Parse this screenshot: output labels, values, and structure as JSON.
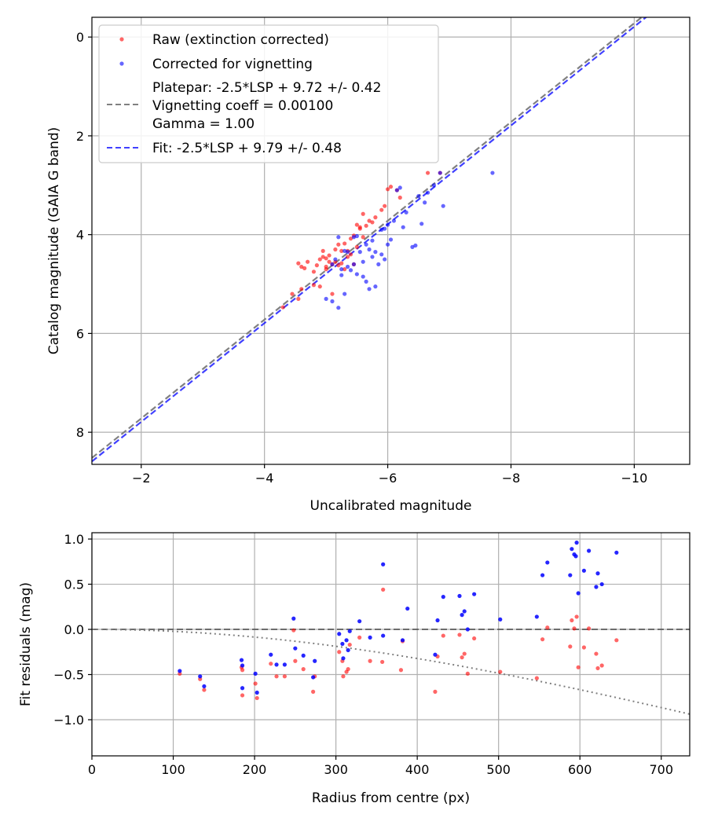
{
  "chart_data": [
    {
      "type": "scatter",
      "xlabel": "Uncalibrated magnitude",
      "ylabel": "Catalog magnitude (GAIA G band)",
      "xlim": [
        -1.2,
        -10.9
      ],
      "ylim": [
        8.65,
        -0.4
      ],
      "x_inverted": true,
      "y_inverted": true,
      "grid": true,
      "xticks": [
        -2,
        -4,
        -6,
        -8,
        -10
      ],
      "xtick_labels": [
        "−2",
        "−4",
        "−6",
        "−8",
        "−10"
      ],
      "yticks": [
        0,
        2,
        4,
        6,
        8
      ],
      "ytick_labels": [
        "0",
        "2",
        "4",
        "6",
        "8"
      ],
      "legend_position": "top-left",
      "legend": [
        {
          "label": "Raw (extinction corrected)",
          "marker": "dot",
          "color": "#ff0000"
        },
        {
          "label": "Corrected for vignetting",
          "marker": "dot",
          "color": "#0000ff"
        },
        {
          "label": "Platepar: -2.5*LSP + 9.72 +/- 0.42",
          "marker": "dashed-line",
          "color": "#808080"
        },
        {
          "label": "Vignetting coeff = 0.00100",
          "marker": "none"
        },
        {
          "label": "Gamma = 1.00",
          "marker": "none"
        },
        {
          "label": "Fit: -2.5*LSP + 9.79 +/- 0.48",
          "marker": "dashed-line",
          "color": "#0000ff"
        }
      ],
      "lines": [
        {
          "name": "Platepar",
          "slope_label": "-2.5*LSP",
          "intercept": 9.72,
          "x_range": [
            -1.2,
            -10.9
          ],
          "color": "#808080",
          "style": "dashed"
        },
        {
          "name": "Fit",
          "slope_label": "-2.5*LSP",
          "intercept": 9.79,
          "x_range": [
            -1.2,
            -10.9
          ],
          "color": "#0000ff",
          "style": "dashed"
        }
      ],
      "series": [
        {
          "name": "Raw (extinction corrected)",
          "color": "#ff0000",
          "points": [
            [
              -4.55,
              4.58
            ],
            [
              -4.6,
              4.65
            ],
            [
              -4.65,
              4.68
            ],
            [
              -4.8,
              4.75
            ],
            [
              -4.85,
              4.62
            ],
            [
              -4.9,
              4.5
            ],
            [
              -4.95,
              4.33
            ],
            [
              -5.0,
              4.48
            ],
            [
              -5.05,
              4.55
            ],
            [
              -5.1,
              4.6
            ],
            [
              -5.15,
              4.3
            ],
            [
              -5.2,
              4.2
            ],
            [
              -5.25,
              4.33
            ],
            [
              -5.3,
              4.18
            ],
            [
              -5.35,
              4.33
            ],
            [
              -5.4,
              4.08
            ],
            [
              -5.45,
              4.02
            ],
            [
              -5.5,
              3.8
            ],
            [
              -5.55,
              3.85
            ],
            [
              -5.6,
              3.58
            ],
            [
              -5.7,
              3.72
            ],
            [
              -5.75,
              3.75
            ],
            [
              -5.8,
              3.65
            ],
            [
              -5.9,
              3.5
            ],
            [
              -5.95,
              3.42
            ],
            [
              -6.0,
              3.08
            ],
            [
              -6.05,
              3.03
            ],
            [
              -6.15,
              3.1
            ],
            [
              -6.2,
              3.25
            ],
            [
              -6.65,
              2.75
            ],
            [
              -6.85,
              2.75
            ],
            [
              -4.55,
              5.3
            ],
            [
              -4.6,
              5.1
            ],
            [
              -4.45,
              5.2
            ],
            [
              -4.3,
              5.47
            ],
            [
              -4.8,
              5.02
            ],
            [
              -4.9,
              5.05
            ],
            [
              -5.1,
              5.2
            ],
            [
              -5.0,
              4.7
            ],
            [
              -5.25,
              4.58
            ],
            [
              -5.4,
              4.4
            ],
            [
              -5.5,
              4.25
            ],
            [
              -5.45,
              4.6
            ],
            [
              -5.6,
              4.05
            ],
            [
              -5.3,
              4.7
            ],
            [
              -5.15,
              4.55
            ],
            [
              -5.35,
              4.45
            ],
            [
              -5.55,
              3.88
            ],
            [
              -5.05,
              4.42
            ],
            [
              -4.95,
              4.45
            ],
            [
              -4.7,
              4.55
            ],
            [
              -5.65,
              3.82
            ],
            [
              -5.2,
              4.62
            ],
            [
              -5.0,
              4.65
            ]
          ]
        },
        {
          "name": "Corrected for vignetting",
          "color": "#0000ff",
          "points": [
            [
              -5.2,
              4.05
            ],
            [
              -5.3,
              4.33
            ],
            [
              -5.35,
              4.35
            ],
            [
              -5.45,
              4.05
            ],
            [
              -5.5,
              4.03
            ],
            [
              -5.55,
              4.35
            ],
            [
              -5.6,
              4.55
            ],
            [
              -5.65,
              4.2
            ],
            [
              -5.7,
              4.3
            ],
            [
              -5.75,
              4.45
            ],
            [
              -5.8,
              4.35
            ],
            [
              -5.9,
              3.9
            ],
            [
              -5.95,
              3.88
            ],
            [
              -6.0,
              3.8
            ],
            [
              -6.1,
              3.72
            ],
            [
              -6.15,
              3.1
            ],
            [
              -6.2,
              3.05
            ],
            [
              -6.3,
              3.55
            ],
            [
              -6.5,
              3.22
            ],
            [
              -6.55,
              3.78
            ],
            [
              -6.65,
              3.15
            ],
            [
              -6.75,
              3.0
            ],
            [
              -6.9,
              3.42
            ],
            [
              -7.7,
              2.75
            ],
            [
              -6.85,
              2.75
            ],
            [
              -6.45,
              4.22
            ],
            [
              -6.4,
              4.25
            ],
            [
              -5.1,
              4.6
            ],
            [
              -5.15,
              4.5
            ],
            [
              -5.25,
              4.7
            ],
            [
              -5.4,
              4.72
            ],
            [
              -5.0,
              5.3
            ],
            [
              -5.1,
              5.35
            ],
            [
              -5.2,
              5.48
            ],
            [
              -5.3,
              5.2
            ],
            [
              -5.7,
              5.1
            ],
            [
              -5.8,
              5.05
            ],
            [
              -5.5,
              4.8
            ],
            [
              -5.85,
              4.6
            ],
            [
              -5.95,
              4.5
            ],
            [
              -6.05,
              4.1
            ],
            [
              -5.35,
              4.65
            ],
            [
              -5.25,
              4.82
            ],
            [
              -5.9,
              4.4
            ],
            [
              -5.6,
              4.85
            ],
            [
              -5.45,
              4.6
            ],
            [
              -6.25,
              3.85
            ],
            [
              -5.75,
              4.12
            ],
            [
              -6.0,
              4.2
            ],
            [
              -5.65,
              4.95
            ],
            [
              -6.6,
              3.35
            ]
          ]
        }
      ]
    },
    {
      "type": "scatter",
      "xlabel": "Radius from centre (px)",
      "ylabel": "Fit residuals (mag)",
      "xlim": [
        0,
        735
      ],
      "ylim": [
        -1.4,
        1.07
      ],
      "grid": true,
      "xticks": [
        0,
        100,
        200,
        300,
        400,
        500,
        600,
        700
      ],
      "xtick_labels": [
        "0",
        "100",
        "200",
        "300",
        "400",
        "500",
        "600",
        "700"
      ],
      "yticks": [
        1.0,
        0.5,
        0.0,
        -0.5,
        -1.0
      ],
      "ytick_labels": [
        "1.0",
        "0.5",
        "0.0",
        "−0.5",
        "−1.0"
      ],
      "lines": [
        {
          "name": "zero",
          "y": 0.0,
          "color": "#555555",
          "style": "dashed"
        },
        {
          "name": "vignetting curve",
          "function": "-2.5*log10(cos(atan(0.001*r))^4)",
          "color": "#808080",
          "style": "dotted"
        }
      ],
      "series": [
        {
          "name": "Raw (extinction corrected)",
          "color": "#ff0000",
          "points": [
            [
              108,
              -0.49
            ],
            [
              133,
              -0.55
            ],
            [
              138,
              -0.67
            ],
            [
              184,
              -0.42
            ],
            [
              185,
              -0.45
            ],
            [
              185,
              -0.73
            ],
            [
              201,
              -0.6
            ],
            [
              203,
              -0.76
            ],
            [
              220,
              -0.38
            ],
            [
              227,
              -0.52
            ],
            [
              237,
              -0.52
            ],
            [
              248,
              -0.01
            ],
            [
              250,
              -0.35
            ],
            [
              260,
              -0.44
            ],
            [
              272,
              -0.69
            ],
            [
              274,
              -0.52
            ],
            [
              304,
              -0.25
            ],
            [
              308,
              -0.35
            ],
            [
              309,
              -0.52
            ],
            [
              313,
              -0.47
            ],
            [
              315,
              -0.44
            ],
            [
              317,
              -0.17
            ],
            [
              329,
              -0.09
            ],
            [
              342,
              -0.35
            ],
            [
              357,
              -0.36
            ],
            [
              358,
              0.44
            ],
            [
              380,
              -0.45
            ],
            [
              382,
              -0.13
            ],
            [
              422,
              -0.69
            ],
            [
              425,
              -0.3
            ],
            [
              432,
              -0.07
            ],
            [
              452,
              -0.06
            ],
            [
              455,
              -0.31
            ],
            [
              458,
              -0.27
            ],
            [
              462,
              -0.49
            ],
            [
              470,
              -0.1
            ],
            [
              502,
              -0.47
            ],
            [
              547,
              -0.54
            ],
            [
              554,
              -0.11
            ],
            [
              560,
              0.02
            ],
            [
              588,
              -0.19
            ],
            [
              590,
              0.1
            ],
            [
              593,
              0.01
            ],
            [
              596,
              0.14
            ],
            [
              598,
              -0.42
            ],
            [
              605,
              -0.2
            ],
            [
              611,
              0.01
            ],
            [
              620,
              -0.27
            ],
            [
              622,
              -0.43
            ],
            [
              627,
              -0.4
            ],
            [
              645,
              -0.12
            ]
          ]
        },
        {
          "name": "Corrected for vignetting",
          "color": "#0000ff",
          "points": [
            [
              108,
              -0.46
            ],
            [
              133,
              -0.52
            ],
            [
              138,
              -0.63
            ],
            [
              184,
              -0.34
            ],
            [
              185,
              -0.4
            ],
            [
              185,
              -0.65
            ],
            [
              201,
              -0.49
            ],
            [
              203,
              -0.7
            ],
            [
              220,
              -0.28
            ],
            [
              227,
              -0.39
            ],
            [
              237,
              -0.39
            ],
            [
              248,
              0.12
            ],
            [
              250,
              -0.21
            ],
            [
              260,
              -0.29
            ],
            [
              272,
              -0.53
            ],
            [
              274,
              -0.35
            ],
            [
              304,
              -0.05
            ],
            [
              308,
              -0.16
            ],
            [
              309,
              -0.32
            ],
            [
              313,
              -0.12
            ],
            [
              315,
              -0.23
            ],
            [
              317,
              -0.02
            ],
            [
              329,
              0.09
            ],
            [
              342,
              -0.09
            ],
            [
              358,
              0.72
            ],
            [
              358,
              -0.07
            ],
            [
              382,
              -0.12
            ],
            [
              388,
              0.23
            ],
            [
              422,
              -0.28
            ],
            [
              425,
              0.1
            ],
            [
              432,
              0.36
            ],
            [
              452,
              0.37
            ],
            [
              455,
              0.16
            ],
            [
              458,
              0.2
            ],
            [
              462,
              0.0
            ],
            [
              470,
              0.39
            ],
            [
              502,
              0.11
            ],
            [
              547,
              0.14
            ],
            [
              554,
              0.6
            ],
            [
              560,
              0.74
            ],
            [
              588,
              0.6
            ],
            [
              590,
              0.89
            ],
            [
              593,
              0.83
            ],
            [
              595,
              0.81
            ],
            [
              596,
              0.96
            ],
            [
              598,
              0.4
            ],
            [
              605,
              0.65
            ],
            [
              611,
              0.87
            ],
            [
              620,
              0.47
            ],
            [
              622,
              0.62
            ],
            [
              627,
              0.5
            ],
            [
              645,
              0.85
            ]
          ]
        }
      ]
    }
  ]
}
